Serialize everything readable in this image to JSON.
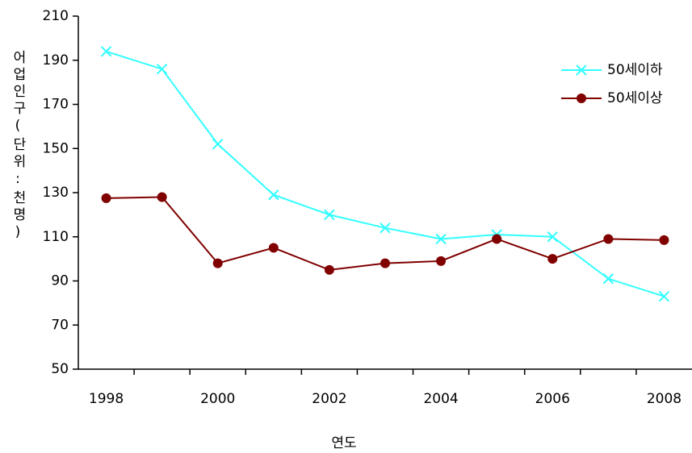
{
  "chart_data": {
    "type": "line",
    "xlabel": "연도",
    "ylabel": "어업인구(단위:천명)",
    "categories": [
      "1998",
      null,
      "2000",
      null,
      "2002",
      null,
      "2004",
      null,
      "2006",
      null,
      "2008"
    ],
    "series": [
      {
        "name": "50세이하",
        "color": "#33ffff",
        "marker": "x",
        "values": [
          194,
          186,
          152,
          129,
          120,
          114,
          109,
          111,
          110,
          91,
          83
        ]
      },
      {
        "name": "50세이상",
        "color": "#800000",
        "marker": "circle",
        "values": [
          127.5,
          128,
          98,
          105,
          95,
          98,
          99,
          109,
          100,
          109,
          108.5
        ]
      }
    ],
    "ylim": [
      50,
      210
    ],
    "yticks": [
      50,
      70,
      90,
      110,
      130,
      150,
      170,
      190,
      210
    ],
    "legend": "upper right"
  }
}
